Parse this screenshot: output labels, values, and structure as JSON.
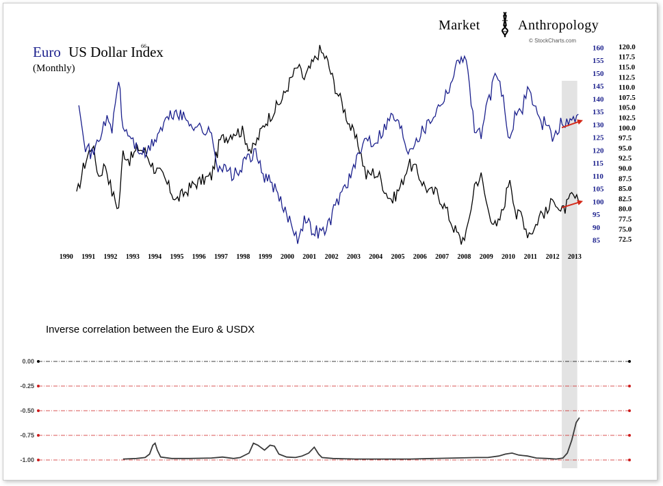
{
  "brand": {
    "left": "Market",
    "right": "Anthropology",
    "credit": "© StockCharts.com"
  },
  "chart_data": [
    {
      "type": "line",
      "title_parts": [
        "Euro",
        "US Dollar Index"
      ],
      "title_mark": "66",
      "subtitle": "(Monthly)",
      "x_labels": [
        "1990",
        "1991",
        "1992",
        "1993",
        "1994",
        "1995",
        "1996",
        "1997",
        "1998",
        "1999",
        "2000",
        "2001",
        "2002",
        "2003",
        "2004",
        "2005",
        "2006",
        "2007",
        "2008",
        "2009",
        "2010",
        "2011",
        "2012",
        "2013"
      ],
      "x_range": [
        1989.6,
        2013.9
      ],
      "series": [
        {
          "name": "Euro",
          "axis": "left-scale",
          "color": "#1a1f8c",
          "ylim": [
            83,
            162
          ],
          "ticks": [
            160,
            155,
            150,
            145,
            140,
            135,
            130,
            125,
            120,
            115,
            110,
            105,
            100,
            95,
            90,
            85
          ],
          "points": [
            [
              1991.0,
              140
            ],
            [
              1991.3,
              122
            ],
            [
              1991.6,
              118
            ],
            [
              1991.9,
              124
            ],
            [
              1992.2,
              132
            ],
            [
              1992.5,
              128
            ],
            [
              1992.8,
              148
            ],
            [
              1993.0,
              128
            ],
            [
              1993.3,
              126
            ],
            [
              1993.6,
              121
            ],
            [
              1994.0,
              118
            ],
            [
              1994.3,
              122
            ],
            [
              1994.7,
              128
            ],
            [
              1995.0,
              132
            ],
            [
              1995.4,
              135
            ],
            [
              1995.8,
              132
            ],
            [
              1996.2,
              130
            ],
            [
              1996.6,
              128
            ],
            [
              1997.0,
              126
            ],
            [
              1997.3,
              114
            ],
            [
              1997.7,
              112
            ],
            [
              1998.0,
              110
            ],
            [
              1998.3,
              112
            ],
            [
              1998.7,
              118
            ],
            [
              1999.0,
              118
            ],
            [
              1999.4,
              110
            ],
            [
              1999.8,
              106
            ],
            [
              2000.2,
              98
            ],
            [
              2000.6,
              92
            ],
            [
              2000.9,
              86
            ],
            [
              2001.2,
              93
            ],
            [
              2001.6,
              89
            ],
            [
              2001.9,
              88
            ],
            [
              2002.2,
              89
            ],
            [
              2002.6,
              98
            ],
            [
              2002.9,
              104
            ],
            [
              2003.3,
              110
            ],
            [
              2003.7,
              118
            ],
            [
              2004.0,
              126
            ],
            [
              2004.3,
              123
            ],
            [
              2004.6,
              126
            ],
            [
              2004.9,
              130
            ],
            [
              2005.2,
              134
            ],
            [
              2005.6,
              128
            ],
            [
              2005.9,
              120
            ],
            [
              2006.2,
              124
            ],
            [
              2006.6,
              128
            ],
            [
              2006.9,
              132
            ],
            [
              2007.2,
              136
            ],
            [
              2007.6,
              142
            ],
            [
              2007.9,
              148
            ],
            [
              2008.3,
              158
            ],
            [
              2008.6,
              152
            ],
            [
              2008.9,
              128
            ],
            [
              2009.2,
              126
            ],
            [
              2009.5,
              138
            ],
            [
              2009.9,
              150
            ],
            [
              2010.2,
              140
            ],
            [
              2010.5,
              122
            ],
            [
              2010.8,
              136
            ],
            [
              2011.0,
              134
            ],
            [
              2011.3,
              145
            ],
            [
              2011.6,
              138
            ],
            [
              2011.9,
              130
            ],
            [
              2012.2,
              132
            ],
            [
              2012.5,
              124
            ],
            [
              2012.8,
              130
            ],
            [
              2013.0,
              131
            ],
            [
              2013.3,
              131
            ],
            [
              2013.6,
              134
            ]
          ]
        },
        {
          "name": "US Dollar Index",
          "axis": "right-scale",
          "color": "#000000",
          "ylim": [
            71,
            121
          ],
          "ticks": [
            "120.0",
            "117.5",
            "115.0",
            "112.5",
            "110.0",
            "107.5",
            "105.0",
            "102.5",
            "100.0",
            "97.5",
            "95.0",
            "92.5",
            "90.0",
            "87.5",
            "85.0",
            "82.5",
            "80.0",
            "77.5",
            "75.0",
            "72.5"
          ],
          "points": [
            [
              1990.9,
              83
            ],
            [
              1991.2,
              90
            ],
            [
              1991.6,
              96
            ],
            [
              1991.9,
              88
            ],
            [
              1992.2,
              91
            ],
            [
              1992.5,
              84
            ],
            [
              1992.8,
              80
            ],
            [
              1993.0,
              94
            ],
            [
              1993.3,
              92
            ],
            [
              1993.7,
              95
            ],
            [
              1994.0,
              94
            ],
            [
              1994.4,
              90
            ],
            [
              1994.8,
              88
            ],
            [
              1995.0,
              86
            ],
            [
              1995.4,
              82
            ],
            [
              1995.8,
              84
            ],
            [
              1996.2,
              86
            ],
            [
              1996.6,
              87
            ],
            [
              1997.0,
              88
            ],
            [
              1997.4,
              97
            ],
            [
              1997.8,
              98
            ],
            [
              1998.0,
              99
            ],
            [
              1998.4,
              99
            ],
            [
              1998.8,
              94
            ],
            [
              1999.0,
              96
            ],
            [
              1999.4,
              101
            ],
            [
              1999.8,
              104
            ],
            [
              2000.2,
              107
            ],
            [
              2000.6,
              112
            ],
            [
              2000.9,
              115
            ],
            [
              2001.2,
              112
            ],
            [
              2001.6,
              116
            ],
            [
              2001.9,
              119
            ],
            [
              2002.2,
              117
            ],
            [
              2002.6,
              110
            ],
            [
              2002.9,
              106
            ],
            [
              2003.3,
              100
            ],
            [
              2003.7,
              95
            ],
            [
              2004.0,
              88
            ],
            [
              2004.3,
              89
            ],
            [
              2004.6,
              88
            ],
            [
              2004.9,
              84
            ],
            [
              2005.2,
              82
            ],
            [
              2005.6,
              86
            ],
            [
              2005.9,
              91
            ],
            [
              2006.2,
              90
            ],
            [
              2006.6,
              86
            ],
            [
              2006.9,
              84
            ],
            [
              2007.2,
              84
            ],
            [
              2007.6,
              80
            ],
            [
              2007.9,
              76
            ],
            [
              2008.3,
              72
            ],
            [
              2008.6,
              75
            ],
            [
              2008.9,
              86
            ],
            [
              2009.2,
              88
            ],
            [
              2009.5,
              80
            ],
            [
              2009.9,
              75
            ],
            [
              2010.2,
              80
            ],
            [
              2010.5,
              88
            ],
            [
              2010.8,
              78
            ],
            [
              2011.0,
              79
            ],
            [
              2011.3,
              74
            ],
            [
              2011.6,
              75
            ],
            [
              2011.9,
              79
            ],
            [
              2012.2,
              79
            ],
            [
              2012.5,
              83
            ],
            [
              2012.8,
              79
            ],
            [
              2013.0,
              80
            ],
            [
              2013.3,
              83
            ],
            [
              2013.6,
              82
            ]
          ]
        }
      ],
      "annotations": [
        {
          "type": "arrow",
          "color": "#d42a1a",
          "from": [
            2012.85,
            128.8
          ],
          "to": [
            2013.75,
            131.5
          ],
          "series": "Euro"
        },
        {
          "type": "arrow",
          "color": "#d42a1a",
          "from": [
            2012.85,
            97.6
          ],
          "to": [
            2013.75,
            100.0
          ],
          "series": "Euro"
        }
      ],
      "highlight": {
        "x_from": 2012.85,
        "x_to": 2013.55,
        "color": "#e3e3e3"
      }
    },
    {
      "type": "line",
      "title": "Inverse correlation between the Euro & USDX",
      "ylim": [
        -1.0,
        0.0
      ],
      "y_ticks": [
        "0.00",
        "-0.25",
        "-0.50",
        "-0.75",
        "-1.00"
      ],
      "reference_line_colors": [
        "#000000",
        "#cc1b1b",
        "#cc1b1b",
        "#cc1b1b",
        "#cc1b1b"
      ],
      "series": [
        {
          "name": "Correlation",
          "color": "#3a3a3a",
          "points": [
            [
              1993.0,
              -0.99
            ],
            [
              1993.6,
              -0.985
            ],
            [
              1994.0,
              -0.975
            ],
            [
              1994.2,
              -0.94
            ],
            [
              1994.35,
              -0.85
            ],
            [
              1994.45,
              -0.83
            ],
            [
              1994.55,
              -0.9
            ],
            [
              1994.7,
              -0.97
            ],
            [
              1995.2,
              -0.985
            ],
            [
              1996.0,
              -0.985
            ],
            [
              1997.0,
              -0.98
            ],
            [
              1997.5,
              -0.97
            ],
            [
              1998.0,
              -0.985
            ],
            [
              1998.3,
              -0.975
            ],
            [
              1998.7,
              -0.93
            ],
            [
              1998.9,
              -0.83
            ],
            [
              1999.1,
              -0.85
            ],
            [
              1999.4,
              -0.9
            ],
            [
              1999.65,
              -0.85
            ],
            [
              1999.85,
              -0.86
            ],
            [
              2000.05,
              -0.94
            ],
            [
              2000.4,
              -0.97
            ],
            [
              2000.8,
              -0.975
            ],
            [
              2001.1,
              -0.96
            ],
            [
              2001.4,
              -0.93
            ],
            [
              2001.65,
              -0.87
            ],
            [
              2001.85,
              -0.94
            ],
            [
              2002.0,
              -0.975
            ],
            [
              2002.5,
              -0.985
            ],
            [
              2003.5,
              -0.99
            ],
            [
              2005.0,
              -0.99
            ],
            [
              2006.0,
              -0.99
            ],
            [
              2007.0,
              -0.985
            ],
            [
              2008.0,
              -0.98
            ],
            [
              2009.0,
              -0.975
            ],
            [
              2009.5,
              -0.975
            ],
            [
              2010.0,
              -0.96
            ],
            [
              2010.3,
              -0.94
            ],
            [
              2010.6,
              -0.93
            ],
            [
              2010.9,
              -0.95
            ],
            [
              2011.3,
              -0.96
            ],
            [
              2011.7,
              -0.98
            ],
            [
              2012.2,
              -0.985
            ],
            [
              2012.6,
              -0.99
            ],
            [
              2012.9,
              -0.98
            ],
            [
              2013.1,
              -0.93
            ],
            [
              2013.3,
              -0.8
            ],
            [
              2013.5,
              -0.62
            ],
            [
              2013.65,
              -0.57
            ]
          ]
        }
      ]
    }
  ]
}
